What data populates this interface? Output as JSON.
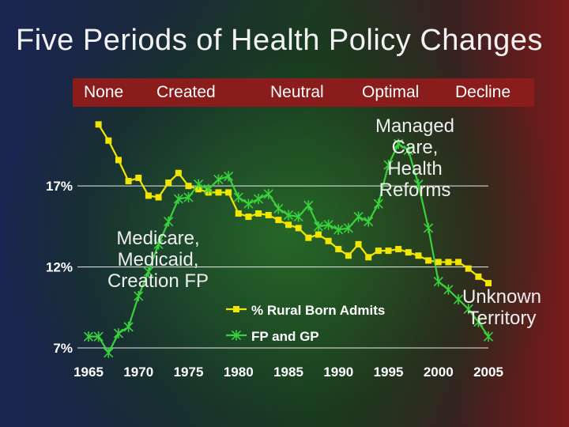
{
  "slide": {
    "title": "Five Periods of Health Policy Changes",
    "periods": [
      "None",
      "Created",
      "Neutral",
      "Optimal",
      "Decline"
    ],
    "annotations": {
      "medicare": "Medicare,\nMedicaid,\nCreation FP",
      "managed": "Managed\nCare,\nHealth\nReforms",
      "unknown": "Unknown\nTerritory"
    }
  },
  "colors": {
    "rural_series": "#f2e600",
    "fpgp_series": "#39d23c",
    "period_bar": "#8a1c1c",
    "grid": "#ffffff"
  },
  "chart_data": {
    "type": "line",
    "title": "",
    "xlabel": "",
    "ylabel": "",
    "xlim": [
      1965,
      2005
    ],
    "ylim": [
      7,
      21.5
    ],
    "x_ticks": [
      1965,
      1970,
      1975,
      1980,
      1985,
      1990,
      1995,
      2000,
      2005
    ],
    "y_ticks": [
      7,
      12,
      17
    ],
    "y_tick_labels": [
      "7%",
      "12%",
      "17%"
    ],
    "grid": "horizontal",
    "legend_placement": "bottom-center",
    "series": [
      {
        "name": "% Rural Born Admits",
        "marker": "square",
        "x": [
          1966,
          1967,
          1968,
          1969,
          1970,
          1971,
          1972,
          1973,
          1974,
          1975,
          1976,
          1977,
          1978,
          1979,
          1980,
          1981,
          1982,
          1983,
          1984,
          1985,
          1986,
          1987,
          1988,
          1989,
          1990,
          1991,
          1992,
          1993,
          1994,
          1995,
          1996,
          1997,
          1998,
          1999,
          2000,
          2001,
          2002,
          2003,
          2004,
          2005
        ],
        "values": [
          20.8,
          19.8,
          18.6,
          17.3,
          17.5,
          16.4,
          16.3,
          17.2,
          17.8,
          17.0,
          16.8,
          16.6,
          16.6,
          16.6,
          15.3,
          15.1,
          15.3,
          15.2,
          14.9,
          14.6,
          14.4,
          13.8,
          14.0,
          13.6,
          13.1,
          12.7,
          13.4,
          12.6,
          13.0,
          13.0,
          13.1,
          12.9,
          12.7,
          12.4,
          12.3,
          12.3,
          12.3,
          11.9,
          11.4,
          11.0
        ]
      },
      {
        "name": "FP and GP",
        "marker": "asterisk",
        "x": [
          1965,
          1966,
          1967,
          1968,
          1969,
          1970,
          1971,
          1972,
          1973,
          1974,
          1975,
          1976,
          1977,
          1978,
          1979,
          1980,
          1981,
          1982,
          1983,
          1984,
          1985,
          1986,
          1987,
          1988,
          1989,
          1990,
          1991,
          1992,
          1993,
          1994,
          1995,
          1996,
          1997,
          1998,
          1999,
          2000,
          2001,
          2002,
          2003,
          2004,
          2005
        ],
        "values": [
          7.7,
          7.7,
          6.7,
          7.9,
          8.3,
          10.2,
          11.7,
          13.4,
          14.8,
          16.2,
          16.3,
          17.1,
          16.8,
          17.4,
          17.6,
          16.3,
          15.9,
          16.2,
          16.5,
          15.6,
          15.2,
          15.1,
          15.8,
          14.5,
          14.6,
          14.3,
          14.4,
          15.1,
          14.8,
          15.9,
          18.3,
          19.6,
          19.2,
          17.1,
          14.4,
          11.1,
          10.6,
          10.0,
          9.4,
          8.6,
          7.7
        ]
      }
    ]
  }
}
